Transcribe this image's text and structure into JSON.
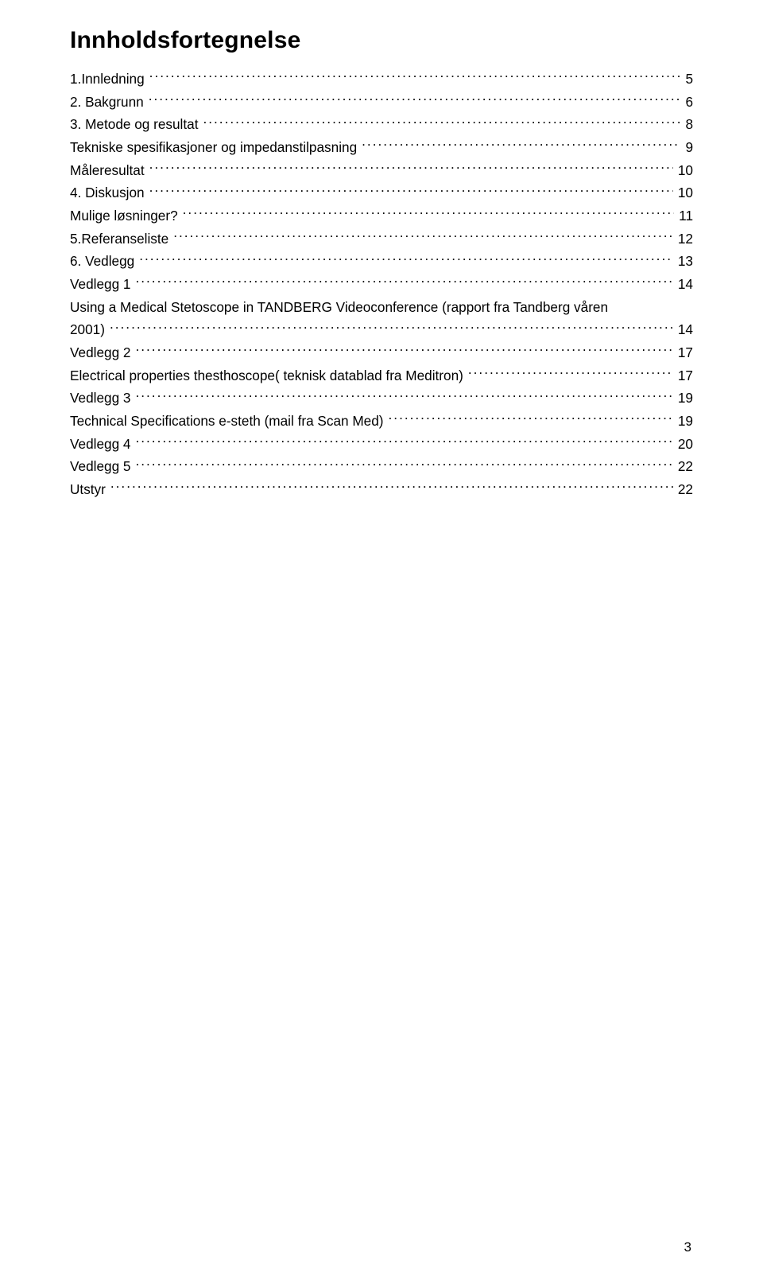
{
  "title": "Innholdsfortegnelse",
  "toc": [
    {
      "label": "1.Innledning",
      "page": "5"
    },
    {
      "label": "2. Bakgrunn",
      "page": "6"
    },
    {
      "label": "3. Metode og resultat",
      "page": "8"
    },
    {
      "label": "Tekniske spesifikasjoner og impedanstilpasning",
      "page": "9"
    },
    {
      "label": "Måleresultat",
      "page": "10"
    },
    {
      "label": "4. Diskusjon",
      "page": "10"
    },
    {
      "label": "Mulige løsninger?",
      "page": "11"
    },
    {
      "label": "5.Referanseliste",
      "page": "12"
    },
    {
      "label": "6. Vedlegg",
      "page": "13"
    },
    {
      "label": "Vedlegg 1",
      "page": "14"
    },
    {
      "label": "Using a Medical Stetoscope in TANDBERG Videoconference (rapport fra Tandberg våren",
      "page": "",
      "nowrapLeader": true
    },
    {
      "label": "2001)",
      "page": "14",
      "continuation": true
    },
    {
      "label": "Vedlegg 2",
      "page": "17"
    },
    {
      "label": "Electrical properties thesthoscope( teknisk datablad fra Meditron)",
      "page": "17"
    },
    {
      "label": "Vedlegg 3",
      "page": "19"
    },
    {
      "label": "Technical Specifications e-steth (mail fra Scan Med)",
      "page": "19"
    },
    {
      "label": "Vedlegg 4",
      "page": "20"
    },
    {
      "label": "Vedlegg 5",
      "page": "22"
    },
    {
      "label": "Utstyr",
      "page": "22"
    }
  ],
  "pageNumber": "3",
  "colors": {
    "background": "#ffffff",
    "text": "#000000"
  },
  "typography": {
    "titleFontSize": 30,
    "titleWeight": 700,
    "bodyFontSize": 17.2,
    "fontFamily": "Arial"
  }
}
